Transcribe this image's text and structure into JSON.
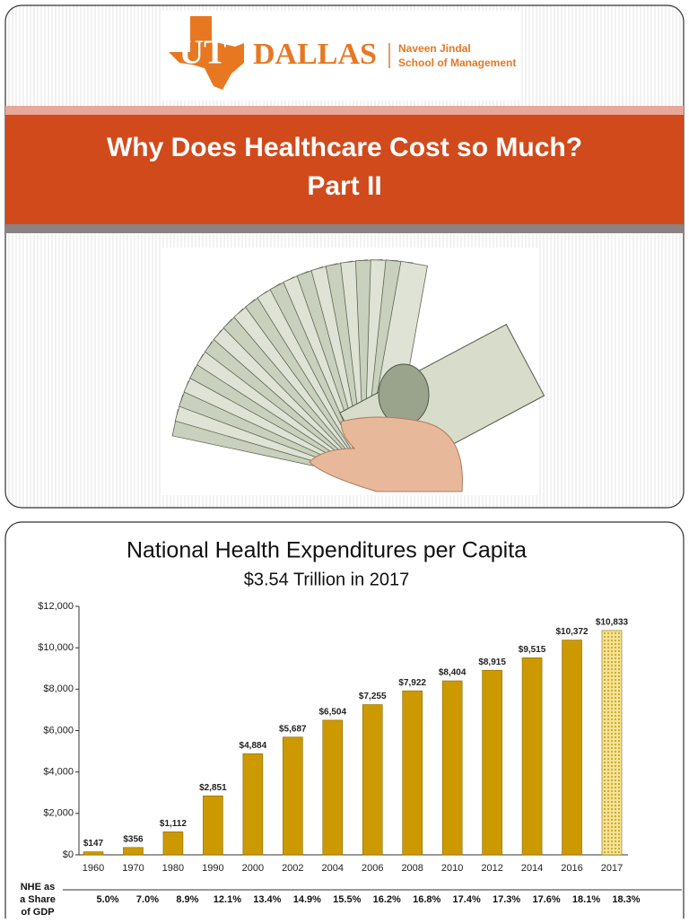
{
  "slide1": {
    "logo": {
      "mark": "UT",
      "name": "DALLAS",
      "school": [
        "Naveen Jindal",
        "School of Management"
      ]
    },
    "title": [
      "Why Does Healthcare Cost so Much?",
      "Part II"
    ]
  },
  "chart_data": {
    "type": "bar",
    "title": "National Health Expenditures per Capita",
    "subtitle": "$3.54 Trillion in 2017",
    "categories": [
      "1960",
      "1970",
      "1980",
      "1990",
      "2000",
      "2002",
      "2004",
      "2006",
      "2008",
      "2010",
      "2012",
      "2014",
      "2016",
      "2017"
    ],
    "values": [
      147,
      356,
      1112,
      2851,
      4884,
      5687,
      6504,
      7255,
      7922,
      8404,
      8915,
      9515,
      10372,
      10833
    ],
    "value_labels": [
      "$147",
      "$356",
      "$1,112",
      "$2,851",
      "$4,884",
      "$5,687",
      "$6,504",
      "$7,255",
      "$7,922",
      "$8,404",
      "$8,915",
      "$9,515",
      "$10,372",
      "$10,833"
    ],
    "color": "#cc9900",
    "ylim": [
      0,
      12000
    ],
    "yticks": [
      {
        "value": 0,
        "label": "$0"
      },
      {
        "value": 2000,
        "label": "$2,000"
      },
      {
        "value": 4000,
        "label": "$4,000"
      },
      {
        "value": 6000,
        "label": "$6,000"
      },
      {
        "value": 8000,
        "label": "$8,000"
      },
      {
        "value": 10000,
        "label": "$10,000"
      },
      {
        "value": 12000,
        "label": "$12,000"
      }
    ],
    "grid": false,
    "gdp_share": {
      "label": [
        "NHE as",
        "a Share",
        "of GDP"
      ],
      "values": [
        "5.0%",
        "7.0%",
        "8.9%",
        "12.1%",
        "13.4%",
        "14.9%",
        "15.5%",
        "16.2%",
        "16.8%",
        "17.4%",
        "17.3%",
        "17.6%",
        "18.1%",
        "18.3%"
      ]
    }
  }
}
